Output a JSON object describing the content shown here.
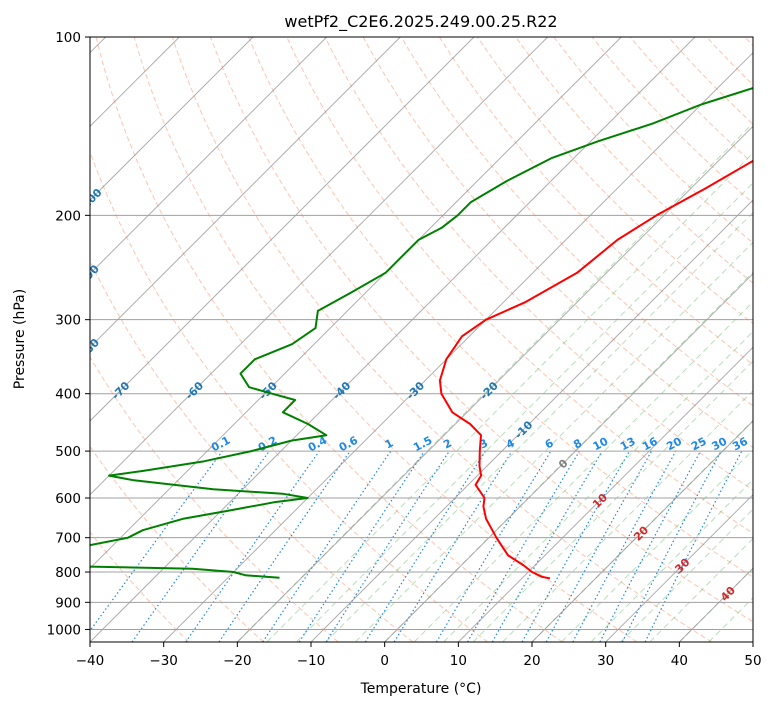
{
  "chart_data": {
    "type": "skew-t",
    "title": "wetPf2_C2E6.2025.249.00.25.R22",
    "xlabel": "Temperature (°C)",
    "ylabel": "Pressure (hPa)",
    "xlim": [
      -40,
      50
    ],
    "ylim_hpa": [
      1050,
      100
    ],
    "x_ticks": [
      -40,
      -30,
      -20,
      -10,
      0,
      10,
      20,
      30,
      40,
      50
    ],
    "x_tick_labels": [
      "−40",
      "−30",
      "−20",
      "−10",
      "0",
      "10",
      "20",
      "30",
      "40",
      "50"
    ],
    "y_ticks": [
      100,
      200,
      300,
      400,
      500,
      600,
      700,
      800,
      900,
      1000
    ],
    "y_tick_labels": [
      "100",
      "200",
      "300",
      "400",
      "500",
      "600",
      "700",
      "800",
      "900",
      "1000"
    ],
    "grid": true,
    "isotherm_labels": [
      {
        "value": -100,
        "text": "-100"
      },
      {
        "value": -90,
        "text": "-90"
      },
      {
        "value": -80,
        "text": "-80"
      },
      {
        "value": -70,
        "text": "-70"
      },
      {
        "value": -60,
        "text": "-60"
      },
      {
        "value": -50,
        "text": "-50"
      },
      {
        "value": -40,
        "text": "-40"
      },
      {
        "value": -30,
        "text": "-30"
      },
      {
        "value": -20,
        "text": "-20"
      },
      {
        "value": -10,
        "text": "-10"
      },
      {
        "value": 0,
        "text": "0"
      },
      {
        "value": 10,
        "text": "10"
      },
      {
        "value": 20,
        "text": "20"
      },
      {
        "value": 30,
        "text": "30"
      },
      {
        "value": 40,
        "text": "40"
      }
    ],
    "mixing_ratio_labels": [
      "0.1",
      "0.2",
      "0.4",
      "0.6",
      "1",
      "1.5",
      "2",
      "3",
      "4",
      "6",
      "8",
      "10",
      "13",
      "16",
      "20",
      "25",
      "30",
      "36"
    ],
    "series": [
      {
        "name": "",
        "kind": "temperature",
        "color": "#ff0000",
        "points": [
          [
            100,
            -4
          ],
          [
            110,
            -9
          ],
          [
            120,
            -12
          ],
          [
            140,
            -13
          ],
          [
            160,
            -15
          ],
          [
            180,
            -18
          ],
          [
            200,
            -21
          ],
          [
            220,
            -23
          ],
          [
            250,
            -24
          ],
          [
            280,
            -27
          ],
          [
            300,
            -30
          ],
          [
            320,
            -31
          ],
          [
            350,
            -30
          ],
          [
            380,
            -28
          ],
          [
            400,
            -26
          ],
          [
            430,
            -22
          ],
          [
            450,
            -18
          ],
          [
            470,
            -15
          ],
          [
            500,
            -13
          ],
          [
            530,
            -11
          ],
          [
            550,
            -9.5
          ],
          [
            570,
            -9
          ],
          [
            600,
            -6
          ],
          [
            620,
            -5
          ],
          [
            650,
            -3
          ],
          [
            700,
            1
          ],
          [
            750,
            5
          ],
          [
            780,
            8.5
          ],
          [
            800,
            10.5
          ],
          [
            815,
            12.5
          ],
          [
            820,
            13.8
          ]
        ]
      },
      {
        "name": "",
        "kind": "dewpoint",
        "color": "#008000",
        "points": [
          [
            100,
            -10
          ],
          [
            110,
            -17
          ],
          [
            120,
            -24
          ],
          [
            130,
            -30
          ],
          [
            140,
            -34
          ],
          [
            150,
            -39
          ],
          [
            160,
            -43
          ],
          [
            175,
            -46
          ],
          [
            190,
            -48
          ],
          [
            200,
            -48
          ],
          [
            210,
            -48.5
          ],
          [
            220,
            -50
          ],
          [
            250,
            -50
          ],
          [
            270,
            -52
          ],
          [
            290,
            -54
          ],
          [
            310,
            -52
          ],
          [
            330,
            -53
          ],
          [
            350,
            -56
          ],
          [
            370,
            -56
          ],
          [
            390,
            -53
          ],
          [
            400,
            -49
          ],
          [
            410,
            -45
          ],
          [
            420,
            -45
          ],
          [
            430,
            -45
          ],
          [
            450,
            -40
          ],
          [
            470,
            -36
          ],
          [
            480,
            -40
          ],
          [
            500,
            -44
          ],
          [
            520,
            -49
          ],
          [
            540,
            -56
          ],
          [
            550,
            -60
          ],
          [
            560,
            -56
          ],
          [
            580,
            -44
          ],
          [
            590,
            -34
          ],
          [
            600,
            -30
          ],
          [
            610,
            -34
          ],
          [
            630,
            -39
          ],
          [
            650,
            -44
          ],
          [
            680,
            -48
          ],
          [
            700,
            -49
          ],
          [
            730,
            -55
          ],
          [
            750,
            -63
          ],
          [
            760,
            -72
          ],
          [
            770,
            -71
          ],
          [
            780,
            -57
          ],
          [
            790,
            -36
          ],
          [
            800,
            -30
          ],
          [
            810,
            -28
          ],
          [
            818,
            -23
          ]
        ]
      }
    ]
  }
}
